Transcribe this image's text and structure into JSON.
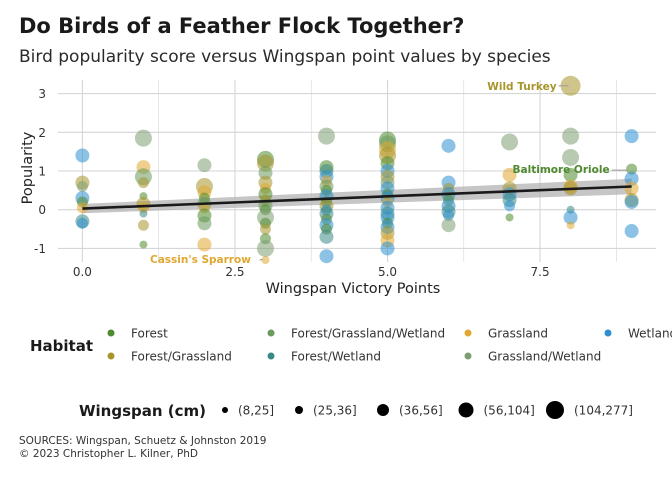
{
  "title": "Do Birds of a Feather Flock Together?",
  "subtitle": "Bird popularity score versus Wingspan point values by species",
  "sources_line": "SOURCES: Wingspan, Schuetz & Johnston 2019",
  "copyright_line": "© 2023 Christopher L. Kilner, PhD",
  "colors": {
    "Forest": "#4f8a2e",
    "Forest/Grassland/Wetland": "#6b9a5e",
    "Grassland": "#e0a830",
    "Wetland": "#2e90cf",
    "Forest/Grassland": "#a8962c",
    "Forest/Wetland": "#3a8a86",
    "Grassland/Wetland": "#7e9f72",
    "trend": "#1a1a1a",
    "band": "#b3b3b3",
    "grid": "#d6d6d6"
  },
  "chart_data": {
    "type": "scatter",
    "xlabel": "Wingspan Victory Points",
    "ylabel": "Popularity",
    "xlim": [
      -0.4,
      9.4
    ],
    "ylim": [
      -1.35,
      3.35
    ],
    "xticks": [
      "0.0",
      "2.5",
      "5.0",
      "7.5"
    ],
    "xtick_values": [
      0,
      2.5,
      5,
      7.5
    ],
    "yticks": [
      "-1",
      "0",
      "1",
      "2",
      "3"
    ],
    "ytick_values": [
      -1,
      0,
      1,
      2,
      3
    ],
    "grid": true,
    "legend_habitat_title": "Habitat",
    "legend_size_title": "Wingspan (cm)",
    "habitats": [
      "Forest",
      "Forest/Grassland/Wetland",
      "Grassland",
      "Wetland",
      "Forest/Grassland",
      "Forest/Wetland",
      "Grassland/Wetland"
    ],
    "size_bins": [
      "(8,25]",
      "(25,36]",
      "(36,56]",
      "(56,104]",
      "(104,277]"
    ],
    "trend": {
      "x": [
        0,
        9
      ],
      "y": [
        0.03,
        0.6
      ],
      "band_halfwidth": [
        0.12,
        0.2
      ]
    },
    "annotations": [
      {
        "text": "Wild Turkey",
        "x": 8,
        "y": 3.2,
        "color": "#a8962c"
      },
      {
        "text": "Baltimore Oriole",
        "x": 9,
        "y": 1.05,
        "color": "#4f8a2e"
      },
      {
        "text": "Cassin's Sparrow",
        "x": 2,
        "y": -1.3,
        "color": "#e0a830"
      }
    ],
    "points": [
      [
        0,
        1.4,
        "Wetland",
        3
      ],
      [
        0,
        0.7,
        "Forest/Grassland",
        3
      ],
      [
        0,
        0.6,
        "Grassland/Wetland",
        2
      ],
      [
        0,
        0.3,
        "Wetland",
        3
      ],
      [
        0,
        0.2,
        "Forest",
        2
      ],
      [
        0,
        0.05,
        "Grassland",
        2
      ],
      [
        0,
        -0.3,
        "Forest/Wetland",
        3
      ],
      [
        0,
        -0.35,
        "Wetland",
        2
      ],
      [
        1,
        1.85,
        "Grassland/Wetland",
        4
      ],
      [
        1,
        1.1,
        "Grassland",
        3
      ],
      [
        1,
        0.85,
        "Forest/Grassland/Wetland",
        4
      ],
      [
        1,
        0.7,
        "Forest/Grassland",
        2
      ],
      [
        1,
        0.35,
        "Forest",
        1
      ],
      [
        1,
        0.15,
        "Forest/Grassland",
        3
      ],
      [
        1,
        0.05,
        "Grassland",
        2
      ],
      [
        1,
        -0.1,
        "Forest/Wetland",
        1
      ],
      [
        1,
        -0.4,
        "Forest/Grassland",
        2
      ],
      [
        1,
        -0.9,
        "Forest",
        1
      ],
      [
        2,
        1.15,
        "Grassland/Wetland",
        3
      ],
      [
        2,
        0.6,
        "Forest/Grassland",
        4
      ],
      [
        2,
        0.45,
        "Grassland",
        3
      ],
      [
        2,
        0.3,
        "Forest",
        2
      ],
      [
        2,
        0.15,
        "Forest/Grassland/Wetland",
        3
      ],
      [
        2,
        0.05,
        "Grassland",
        2
      ],
      [
        2,
        -0.15,
        "Forest",
        3
      ],
      [
        2,
        -0.35,
        "Forest/Grassland/Wetland",
        3
      ],
      [
        2,
        -0.9,
        "Grassland",
        3
      ],
      [
        3,
        1.3,
        "Forest",
        4
      ],
      [
        3,
        1.2,
        "Forest/Grassland",
        4
      ],
      [
        3,
        0.95,
        "Forest/Grassland/Wetland",
        3
      ],
      [
        3,
        0.7,
        "Forest/Grassland",
        3
      ],
      [
        3,
        0.55,
        "Grassland",
        2
      ],
      [
        3,
        0.4,
        "Forest",
        3
      ],
      [
        3,
        0.25,
        "Forest/Grassland",
        2
      ],
      [
        3,
        0.1,
        "Forest/Grassland/Wetland",
        3
      ],
      [
        3,
        0.0,
        "Forest",
        2
      ],
      [
        3,
        -0.2,
        "Grassland/Wetland",
        4
      ],
      [
        3,
        -0.35,
        "Forest",
        2
      ],
      [
        3,
        -0.5,
        "Forest/Grassland",
        2
      ],
      [
        3,
        -0.75,
        "Forest",
        2
      ],
      [
        3,
        -1.0,
        "Grassland/Wetland",
        4
      ],
      [
        3,
        -1.3,
        "Grassland",
        1
      ],
      [
        4,
        1.9,
        "Grassland/Wetland",
        4
      ],
      [
        4,
        1.1,
        "Forest",
        3
      ],
      [
        4,
        1.0,
        "Forest/Wetland",
        3
      ],
      [
        4,
        0.85,
        "Wetland",
        3
      ],
      [
        4,
        0.75,
        "Grassland",
        2
      ],
      [
        4,
        0.6,
        "Forest/Grassland/Wetland",
        3
      ],
      [
        4,
        0.5,
        "Forest",
        2
      ],
      [
        4,
        0.35,
        "Wetland",
        3
      ],
      [
        4,
        0.2,
        "Forest",
        2
      ],
      [
        4,
        0.1,
        "Forest/Grassland",
        3
      ],
      [
        4,
        0.0,
        "Wetland",
        2
      ],
      [
        4,
        -0.1,
        "Forest/Wetland",
        3
      ],
      [
        4,
        -0.25,
        "Forest",
        2
      ],
      [
        4,
        -0.4,
        "Wetland",
        3
      ],
      [
        4,
        -0.5,
        "Forest",
        2
      ],
      [
        4,
        -0.7,
        "Forest/Wetland",
        3
      ],
      [
        4,
        -1.2,
        "Wetland",
        3
      ],
      [
        5,
        1.8,
        "Forest",
        4
      ],
      [
        5,
        1.7,
        "Forest/Grassland/Wetland",
        4
      ],
      [
        5,
        1.55,
        "Grassland",
        4
      ],
      [
        5,
        1.4,
        "Forest/Grassland",
        4
      ],
      [
        5,
        1.2,
        "Forest",
        3
      ],
      [
        5,
        1.0,
        "Wetland",
        3
      ],
      [
        5,
        0.85,
        "Forest/Grassland",
        3
      ],
      [
        5,
        0.7,
        "Grassland/Wetland",
        3
      ],
      [
        5,
        0.55,
        "Wetland",
        3
      ],
      [
        5,
        0.4,
        "Forest",
        2
      ],
      [
        5,
        0.3,
        "Wetland",
        3
      ],
      [
        5,
        0.2,
        "Grassland",
        2
      ],
      [
        5,
        0.05,
        "Wetland",
        3
      ],
      [
        5,
        -0.1,
        "Forest/Wetland",
        3
      ],
      [
        5,
        -0.2,
        "Wetland",
        3
      ],
      [
        5,
        -0.35,
        "Forest",
        2
      ],
      [
        5,
        -0.45,
        "Wetland",
        3
      ],
      [
        5,
        -0.6,
        "Forest/Grassland",
        3
      ],
      [
        5,
        -0.8,
        "Grassland",
        3
      ],
      [
        5,
        -1.0,
        "Wetland",
        3
      ],
      [
        6,
        1.65,
        "Wetland",
        3
      ],
      [
        6,
        0.7,
        "Wetland",
        3
      ],
      [
        6,
        0.55,
        "Forest/Grassland",
        2
      ],
      [
        6,
        0.4,
        "Wetland",
        3
      ],
      [
        6,
        0.25,
        "Forest",
        2
      ],
      [
        6,
        0.1,
        "Wetland",
        3
      ],
      [
        6,
        -0.05,
        "Forest/Wetland",
        3
      ],
      [
        6,
        -0.15,
        "Wetland",
        2
      ],
      [
        6,
        -0.4,
        "Grassland/Wetland",
        3
      ],
      [
        7,
        1.75,
        "Grassland/Wetland",
        4
      ],
      [
        7,
        0.9,
        "Grassland",
        3
      ],
      [
        7,
        0.55,
        "Forest/Grassland",
        3
      ],
      [
        7,
        0.4,
        "Wetland",
        3
      ],
      [
        7,
        0.25,
        "Forest/Wetland",
        3
      ],
      [
        7,
        0.1,
        "Wetland",
        2
      ],
      [
        7,
        -0.2,
        "Forest",
        1
      ],
      [
        8,
        3.2,
        "Forest/Grassland",
        5
      ],
      [
        8,
        1.9,
        "Grassland/Wetland",
        4
      ],
      [
        8,
        1.35,
        "Grassland/Wetland",
        4
      ],
      [
        8,
        0.9,
        "Forest",
        3
      ],
      [
        8,
        0.6,
        "Grassland",
        3
      ],
      [
        8,
        0.55,
        "Forest/Grassland",
        3
      ],
      [
        8,
        0.0,
        "Forest/Wetland",
        1
      ],
      [
        8,
        -0.2,
        "Wetland",
        3
      ],
      [
        8,
        -0.4,
        "Grassland",
        1
      ],
      [
        9,
        1.9,
        "Wetland",
        3
      ],
      [
        9,
        1.05,
        "Forest",
        2
      ],
      [
        9,
        0.8,
        "Wetland",
        3
      ],
      [
        9,
        0.55,
        "Grassland",
        3
      ],
      [
        9,
        0.25,
        "Forest/Grassland",
        3
      ],
      [
        9,
        0.2,
        "Wetland",
        3
      ],
      [
        9,
        -0.55,
        "Wetland",
        3
      ]
    ]
  }
}
